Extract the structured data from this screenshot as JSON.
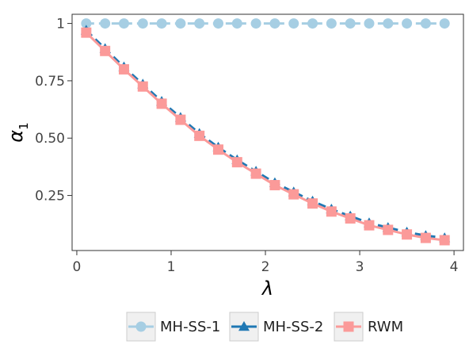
{
  "chart_data": {
    "type": "line",
    "xlabel": "λ",
    "ylabel": "α",
    "ylabel_sub": "1",
    "xlim": [
      -0.05,
      4.1
    ],
    "ylim": [
      0.01,
      1.04
    ],
    "x_ticks": [
      0,
      1,
      2,
      3,
      4
    ],
    "x_tick_labels": [
      "0",
      "1",
      "2",
      "3",
      "4"
    ],
    "y_ticks": [
      0.25,
      0.5,
      0.75,
      1
    ],
    "y_tick_labels": [
      "0.25",
      "0.50",
      "0.75",
      "1"
    ],
    "grid": false,
    "legend_position": "bottom",
    "x": [
      0.1,
      0.3,
      0.5,
      0.7,
      0.9,
      1.1,
      1.3,
      1.5,
      1.7,
      1.9,
      2.1,
      2.3,
      2.5,
      2.7,
      2.9,
      3.1,
      3.3,
      3.5,
      3.7,
      3.9
    ],
    "series": [
      {
        "name": "MH-SS-1",
        "color": "#a6cee3",
        "marker": "circle",
        "line_style": "dashed",
        "values": [
          1.0,
          1.0,
          1.0,
          1.0,
          1.0,
          1.0,
          1.0,
          1.0,
          1.0,
          1.0,
          1.0,
          1.0,
          1.0,
          1.0,
          1.0,
          1.0,
          1.0,
          1.0,
          1.0,
          1.0
        ]
      },
      {
        "name": "MH-SS-2",
        "color": "#1f78b4",
        "marker": "triangle",
        "line_style": "dashed",
        "values": [
          0.97,
          0.89,
          0.81,
          0.735,
          0.66,
          0.59,
          0.52,
          0.46,
          0.405,
          0.355,
          0.305,
          0.265,
          0.225,
          0.19,
          0.16,
          0.13,
          0.11,
          0.09,
          0.075,
          0.065
        ]
      },
      {
        "name": "RWM",
        "color": "#fb9a99",
        "marker": "square",
        "line_style": "solid",
        "values": [
          0.96,
          0.88,
          0.8,
          0.725,
          0.65,
          0.58,
          0.51,
          0.45,
          0.395,
          0.345,
          0.295,
          0.255,
          0.215,
          0.18,
          0.15,
          0.12,
          0.1,
          0.08,
          0.065,
          0.055
        ]
      }
    ]
  }
}
